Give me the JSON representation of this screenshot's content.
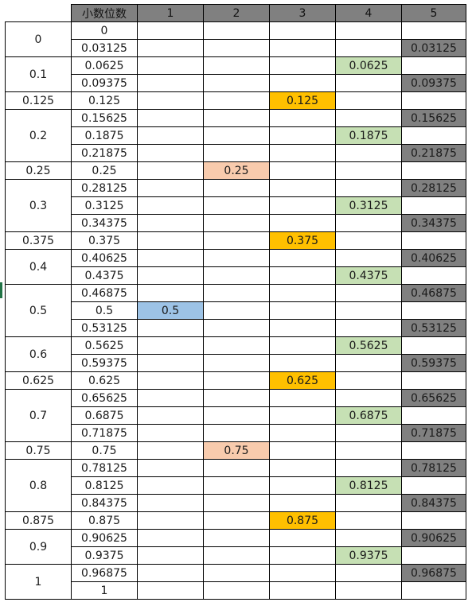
{
  "header": {
    "corner": "",
    "decimal_label": "小数位数",
    "columns": [
      "1",
      "2",
      "3",
      "4",
      "5"
    ]
  },
  "colors": {
    "col1": "#9dc3e6",
    "col2": "#f8cbad",
    "col3": "#ffc000",
    "col4": "#c6e0b4",
    "col5": "#808080",
    "header_bg": "#808080"
  },
  "groups": [
    {
      "label": "0",
      "rows": [
        {
          "v": "0",
          "c": []
        },
        {
          "v": "0.03125",
          "c": [
            5
          ]
        }
      ]
    },
    {
      "label": "0.1",
      "rows": [
        {
          "v": "0.0625",
          "c": [
            4
          ]
        },
        {
          "v": "0.09375",
          "c": [
            5
          ]
        }
      ]
    },
    {
      "label": "0.125",
      "rows": [
        {
          "v": "0.125",
          "c": [
            3
          ]
        }
      ]
    },
    {
      "label": "0.2",
      "rows": [
        {
          "v": "0.15625",
          "c": [
            5
          ]
        },
        {
          "v": "0.1875",
          "c": [
            4
          ]
        },
        {
          "v": "0.21875",
          "c": [
            5
          ]
        }
      ]
    },
    {
      "label": "0.25",
      "rows": [
        {
          "v": "0.25",
          "c": [
            2
          ]
        }
      ]
    },
    {
      "label": "0.3",
      "rows": [
        {
          "v": "0.28125",
          "c": [
            5
          ]
        },
        {
          "v": "0.3125",
          "c": [
            4
          ]
        },
        {
          "v": "0.34375",
          "c": [
            5
          ]
        }
      ]
    },
    {
      "label": "0.375",
      "rows": [
        {
          "v": "0.375",
          "c": [
            3
          ]
        }
      ]
    },
    {
      "label": "0.4",
      "rows": [
        {
          "v": "0.40625",
          "c": [
            5
          ]
        },
        {
          "v": "0.4375",
          "c": [
            4
          ]
        }
      ]
    },
    {
      "label": "0.5",
      "rows": [
        {
          "v": "0.46875",
          "c": [
            5
          ]
        },
        {
          "v": "0.5",
          "c": [
            1
          ]
        },
        {
          "v": "0.53125",
          "c": [
            5
          ]
        }
      ]
    },
    {
      "label": "0.6",
      "rows": [
        {
          "v": "0.5625",
          "c": [
            4
          ]
        },
        {
          "v": "0.59375",
          "c": [
            5
          ]
        }
      ]
    },
    {
      "label": "0.625",
      "rows": [
        {
          "v": "0.625",
          "c": [
            3
          ]
        }
      ]
    },
    {
      "label": "0.7",
      "rows": [
        {
          "v": "0.65625",
          "c": [
            5
          ]
        },
        {
          "v": "0.6875",
          "c": [
            4
          ]
        },
        {
          "v": "0.71875",
          "c": [
            5
          ]
        }
      ]
    },
    {
      "label": "0.75",
      "rows": [
        {
          "v": "0.75",
          "c": [
            2
          ]
        }
      ]
    },
    {
      "label": "0.8",
      "rows": [
        {
          "v": "0.78125",
          "c": [
            5
          ]
        },
        {
          "v": "0.8125",
          "c": [
            4
          ]
        },
        {
          "v": "0.84375",
          "c": [
            5
          ]
        }
      ]
    },
    {
      "label": "0.875",
      "rows": [
        {
          "v": "0.875",
          "c": [
            3
          ]
        }
      ]
    },
    {
      "label": "0.9",
      "rows": [
        {
          "v": "0.90625",
          "c": [
            5
          ]
        },
        {
          "v": "0.9375",
          "c": [
            4
          ]
        }
      ]
    },
    {
      "label": "1",
      "rows": [
        {
          "v": "0.96875",
          "c": [
            5
          ]
        },
        {
          "v": "1",
          "c": []
        }
      ]
    }
  ]
}
